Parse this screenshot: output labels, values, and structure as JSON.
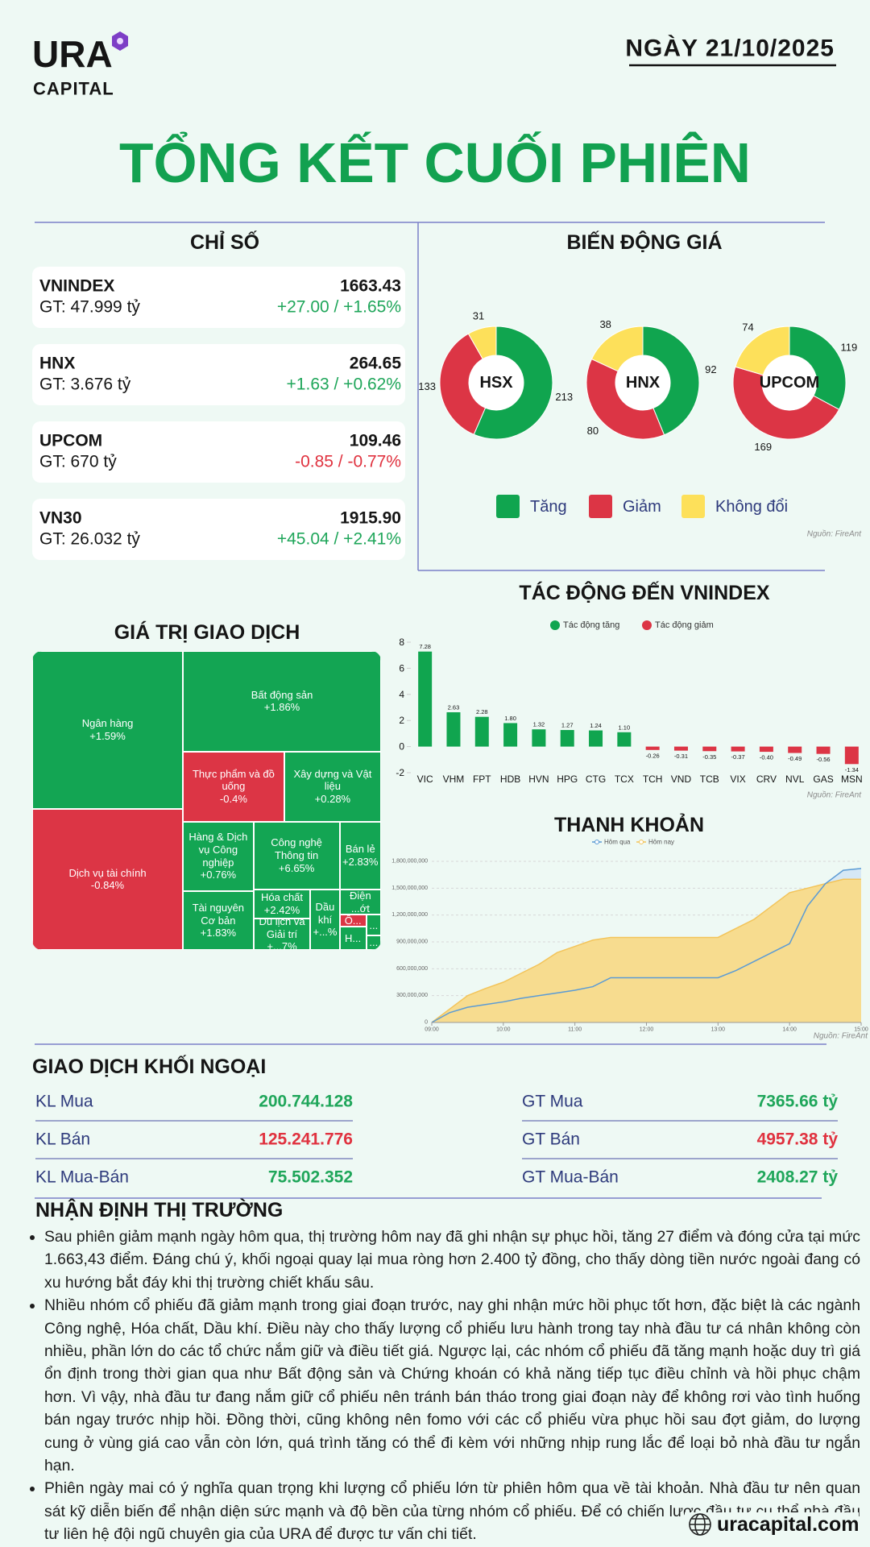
{
  "header": {
    "logo": "URA",
    "logo_sub": "CAPITAL",
    "date": "NGÀY 21/10/2025",
    "title": "TỔNG KẾT CUỐI PHIÊN"
  },
  "palette": {
    "up": "#1fa65a",
    "down": "#e0323f"
  },
  "indices": {
    "title": "CHỈ SỐ",
    "items": [
      {
        "name": "VNINDEX",
        "gt": "GT: 47.999 tỷ",
        "value": "1663.43",
        "change": "+27.00 / +1.65%",
        "direction": "up"
      },
      {
        "name": "HNX",
        "gt": "GT: 3.676 tỷ",
        "value": "264.65",
        "change": "+1.63 / +0.62%",
        "direction": "up"
      },
      {
        "name": "UPCOM",
        "gt": "GT: 670 tỷ",
        "value": "109.46",
        "change": "-0.85 / -0.77%",
        "direction": "down"
      },
      {
        "name": "VN30",
        "gt": "GT: 26.032 tỷ",
        "value": "1915.90",
        "change": "+45.04 / +2.41%",
        "direction": "up"
      }
    ]
  },
  "chart_data": [
    {
      "type": "donut",
      "title": "BIẾN ĐỘNG GIÁ",
      "categories": [
        "Tăng",
        "Giảm",
        "Không đổi"
      ],
      "colors": [
        "#10a54f",
        "#dc3545",
        "#fde05a"
      ],
      "pies": [
        {
          "name": "HSX",
          "values": [
            213,
            133,
            31
          ]
        },
        {
          "name": "HNX",
          "values": [
            92,
            80,
            38
          ]
        },
        {
          "name": "UPCOM",
          "values": [
            119,
            169,
            74
          ]
        }
      ],
      "source": "Nguồn: FireAnt"
    },
    {
      "type": "bar",
      "title": "TÁC ĐỘNG ĐẾN VNINDEX",
      "categories": [
        "VIC",
        "VHM",
        "FPT",
        "HDB",
        "HVN",
        "HPG",
        "CTG",
        "TCX",
        "TCH",
        "VND",
        "TCB",
        "VIX",
        "CRV",
        "NVL",
        "GAS",
        "MSN"
      ],
      "series": [
        {
          "name": "Tác động tăng",
          "color": "#10a54f",
          "values": [
            7.28,
            2.63,
            2.28,
            1.8,
            1.32,
            1.27,
            1.24,
            1.1,
            null,
            null,
            null,
            null,
            null,
            null,
            null,
            null
          ],
          "value_labels": [
            "7.28",
            "2.63",
            "2.28",
            "1.80",
            "1.32",
            "1.27",
            "1.24",
            "1.10",
            null,
            null,
            null,
            null,
            null,
            null,
            null,
            null
          ]
        },
        {
          "name": "Tác động giảm",
          "color": "#dc3545",
          "values": [
            null,
            null,
            null,
            null,
            null,
            null,
            null,
            null,
            -0.26,
            -0.31,
            -0.35,
            -0.37,
            -0.4,
            -0.49,
            -0.56,
            -1.34
          ],
          "value_labels": [
            null,
            null,
            null,
            null,
            null,
            null,
            null,
            null,
            "-0.26",
            "-0.31",
            "-0.35",
            "-0.37",
            "-0.40",
            "-0.49",
            "-0.56",
            "-1.34"
          ]
        }
      ],
      "ylim": [
        -2,
        8
      ],
      "yticks": [
        -2,
        0,
        2,
        4,
        6,
        8
      ],
      "grid": false,
      "source": "Nguồn: FireAnt"
    },
    {
      "type": "treemap",
      "title": "GIÁ TRỊ GIAO DỊCH",
      "items": [
        {
          "name": "Ngân hàng",
          "change": "+1.59%",
          "value": 22.8,
          "color": "#13a553"
        },
        {
          "name": "Dịch vụ tài chính",
          "change": "-0.84%",
          "value": 20.4,
          "color": "#dc3545"
        },
        {
          "name": "Bất động sản",
          "change": "+1.86%",
          "value": 19.1,
          "color": "#13a553"
        },
        {
          "name": "Thực phẩm và đồ uống",
          "change": "-0.4%",
          "value": 6.8,
          "color": "#dc3545"
        },
        {
          "name": "Xây dựng và Vật liệu",
          "change": "+0.28%",
          "value": 6.5,
          "color": "#13a553"
        },
        {
          "name": "Hàng & Dịch vụ Công nghiệp",
          "change": "+0.76%",
          "value": 4.7,
          "color": "#13a553"
        },
        {
          "name": "Tài nguyên Cơ bản",
          "change": "+1.83%",
          "value": 4.0,
          "color": "#13a553"
        },
        {
          "name": "Công nghệ Thông tin",
          "change": "+6.65%",
          "value": 5.6,
          "color": "#13a553"
        },
        {
          "name": "Bán lẻ",
          "change": "+2.83%",
          "value": 2.7,
          "color": "#13a553"
        },
        {
          "name": "Hóa chất",
          "change": "+2.42%",
          "value": 1.6,
          "color": "#13a553"
        },
        {
          "name": "Du lịch và Giải trí",
          "change": "+...7%",
          "value": 1.7,
          "color": "#13a553"
        },
        {
          "name": "Dầu khí",
          "change": "+...%",
          "value": 1.7,
          "color": "#13a553"
        },
        {
          "name": "Điện ...ớt",
          "value": 1.0,
          "color": "#13a553"
        },
        {
          "name": "Ô...",
          "value": 0.3,
          "color": "#dc3545"
        },
        {
          "name": "H...",
          "value": 0.6,
          "color": "#13a553"
        },
        {
          "name": "...",
          "value": 0.3,
          "color": "#13a553"
        },
        {
          "name": "...",
          "value": 0.2,
          "color": "#13a553"
        }
      ]
    },
    {
      "type": "line",
      "title": "THANH KHOẢN",
      "x": [
        "09:00",
        "09:15",
        "09:30",
        "09:45",
        "10:00",
        "10:15",
        "10:30",
        "10:45",
        "11:00",
        "11:15",
        "11:30",
        "11:45",
        "12:00",
        "12:15",
        "12:30",
        "12:45",
        "13:00",
        "13:15",
        "13:30",
        "13:45",
        "14:00",
        "14:15",
        "14:30",
        "14:45",
        "15:00"
      ],
      "series": [
        {
          "name": "Hôm qua",
          "color": "#5b9bd5",
          "fill": "#d6e8f5",
          "values": [
            0,
            110000000,
            170000000,
            200000000,
            230000000,
            270000000,
            300000000,
            330000000,
            360000000,
            400000000,
            500000000,
            500000000,
            500000000,
            500000000,
            500000000,
            500000000,
            500000000,
            580000000,
            680000000,
            780000000,
            880000000,
            1300000000,
            1550000000,
            1700000000,
            1720000000
          ]
        },
        {
          "name": "Hôm nay",
          "color": "#f3c45a",
          "fill": "#f7dc8f",
          "values": [
            0,
            150000000,
            300000000,
            380000000,
            450000000,
            550000000,
            650000000,
            780000000,
            850000000,
            920000000,
            950000000,
            950000000,
            950000000,
            950000000,
            950000000,
            950000000,
            950000000,
            1050000000,
            1150000000,
            1300000000,
            1450000000,
            1500000000,
            1550000000,
            1600000000,
            1600000000
          ]
        }
      ],
      "xlim": [
        "09:00",
        "15:00"
      ],
      "xticks": [
        "09:00",
        "10:00",
        "11:00",
        "12:00",
        "13:00",
        "14:00",
        "15:00"
      ],
      "ylim": [
        0,
        1800000000
      ],
      "yticks": [
        0,
        {
          "value": 300000000,
          "label": "300,000,000"
        },
        {
          "value": 600000000,
          "label": "600,000,000"
        },
        {
          "value": 900000000,
          "label": "900,000,000"
        },
        {
          "value": 1200000000,
          "label": "1,200,000,000"
        },
        {
          "value": 1500000000,
          "label": "1,500,000,000"
        },
        {
          "value": 1800000000,
          "label": "1,800,000,000"
        }
      ],
      "grid": true,
      "source": "Nguồn: FireAnt"
    }
  ],
  "foreign": {
    "title": "GIAO DỊCH KHỐI NGOẠI",
    "rows": [
      {
        "left_label": "KL Mua",
        "left_value": "200.744.128",
        "right_label": "GT Mua",
        "right_value": "7365.66 tỷ",
        "tone": "up"
      },
      {
        "left_label": "KL Bán",
        "left_value": "125.241.776",
        "right_label": "GT Bán",
        "right_value": "4957.38 tỷ",
        "tone": "down"
      },
      {
        "left_label": "KL Mua-Bán",
        "left_value": "75.502.352",
        "right_label": "GT Mua-Bán",
        "right_value": "2408.27 tỷ",
        "tone": "up"
      }
    ]
  },
  "commentary": {
    "title": "NHẬN ĐỊNH THỊ TRƯỜNG",
    "bullets": [
      "Sau phiên giảm mạnh ngày hôm qua, thị trường hôm nay đã ghi nhận sự phục hồi, tăng 27 điểm và đóng cửa tại mức 1.663,43 điểm. Đáng chú ý, khối ngoại quay lại mua ròng hơn 2.400 tỷ đồng, cho thấy dòng tiền nước ngoài đang có xu hướng bắt đáy khi thị trường chiết khấu sâu.",
      "Nhiều nhóm cổ phiếu đã giảm mạnh trong giai đoạn trước, nay ghi nhận mức hồi phục tốt hơn, đặc biệt là các ngành Công nghệ, Hóa chất, Dầu khí. Điều này cho thấy lượng cổ phiếu lưu hành trong tay nhà đầu tư cá nhân không còn nhiều, phần lớn do các tổ chức nắm giữ và điều tiết giá. Ngược lại, các nhóm cổ phiếu đã tăng mạnh hoặc duy trì giá ổn định trong thời gian qua như Bất động sản và Chứng khoán có khả năng tiếp tục điều chỉnh và hồi phục chậm hơn. Vì vậy, nhà đầu tư đang nắm giữ cổ phiếu nên tránh bán tháo trong giai đoạn này để không rơi vào tình huống bán ngay trước nhịp hồi. Đồng thời, cũng không nên fomo với các cổ phiếu vừa phục hồi sau đợt giảm, do lượng cung ở vùng giá cao vẫn còn lớn, quá trình tăng có thể đi kèm với những nhịp rung lắc để loại bỏ nhà đầu tư ngắn hạn.",
      "Phiên ngày mai có ý nghĩa quan trọng khi lượng cổ phiếu lớn từ phiên hôm qua về tài khoản. Nhà đầu tư nên quan sát kỹ diễn biến để nhận diện sức mạnh và độ bền của từng nhóm cổ phiếu. Để có chiến lược đầu tư cụ thể nhà đầu tư liên hệ đội ngũ chuyên gia của URA để được tư vấn chi tiết."
    ]
  },
  "footer": {
    "website": "uracapital.com"
  }
}
